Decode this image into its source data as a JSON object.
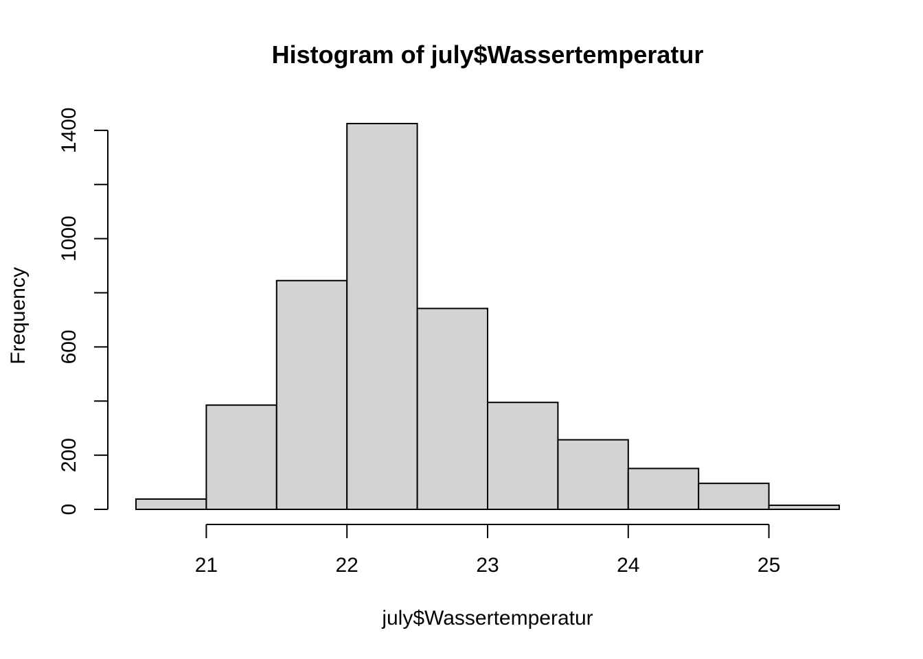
{
  "chart_data": {
    "type": "bar",
    "title": "Histogram of july$Wassertemperatur",
    "xlabel": "july$Wassertemperatur",
    "ylabel": "Frequency",
    "bins": [
      {
        "start": 20.5,
        "end": 21.0,
        "value": 38
      },
      {
        "start": 21.0,
        "end": 21.5,
        "value": 385
      },
      {
        "start": 21.5,
        "end": 22.0,
        "value": 845
      },
      {
        "start": 22.0,
        "end": 22.5,
        "value": 1425
      },
      {
        "start": 22.5,
        "end": 23.0,
        "value": 742
      },
      {
        "start": 23.0,
        "end": 23.5,
        "value": 395
      },
      {
        "start": 23.5,
        "end": 24.0,
        "value": 257
      },
      {
        "start": 24.0,
        "end": 24.5,
        "value": 151
      },
      {
        "start": 24.5,
        "end": 25.0,
        "value": 96
      },
      {
        "start": 25.0,
        "end": 25.5,
        "value": 15
      }
    ],
    "xlim": [
      20.5,
      25.5
    ],
    "ylim": [
      0,
      1425
    ],
    "x_ticks": [
      21,
      22,
      23,
      24,
      25
    ],
    "y_ticks": [
      0,
      200,
      400,
      600,
      800,
      1000,
      1200,
      1400
    ],
    "y_tick_labels": [
      "0",
      "200",
      "",
      "600",
      "",
      "1000",
      "",
      "1400"
    ],
    "bar_color": "#d3d3d3",
    "edge_color": "#000000",
    "grid": false
  }
}
